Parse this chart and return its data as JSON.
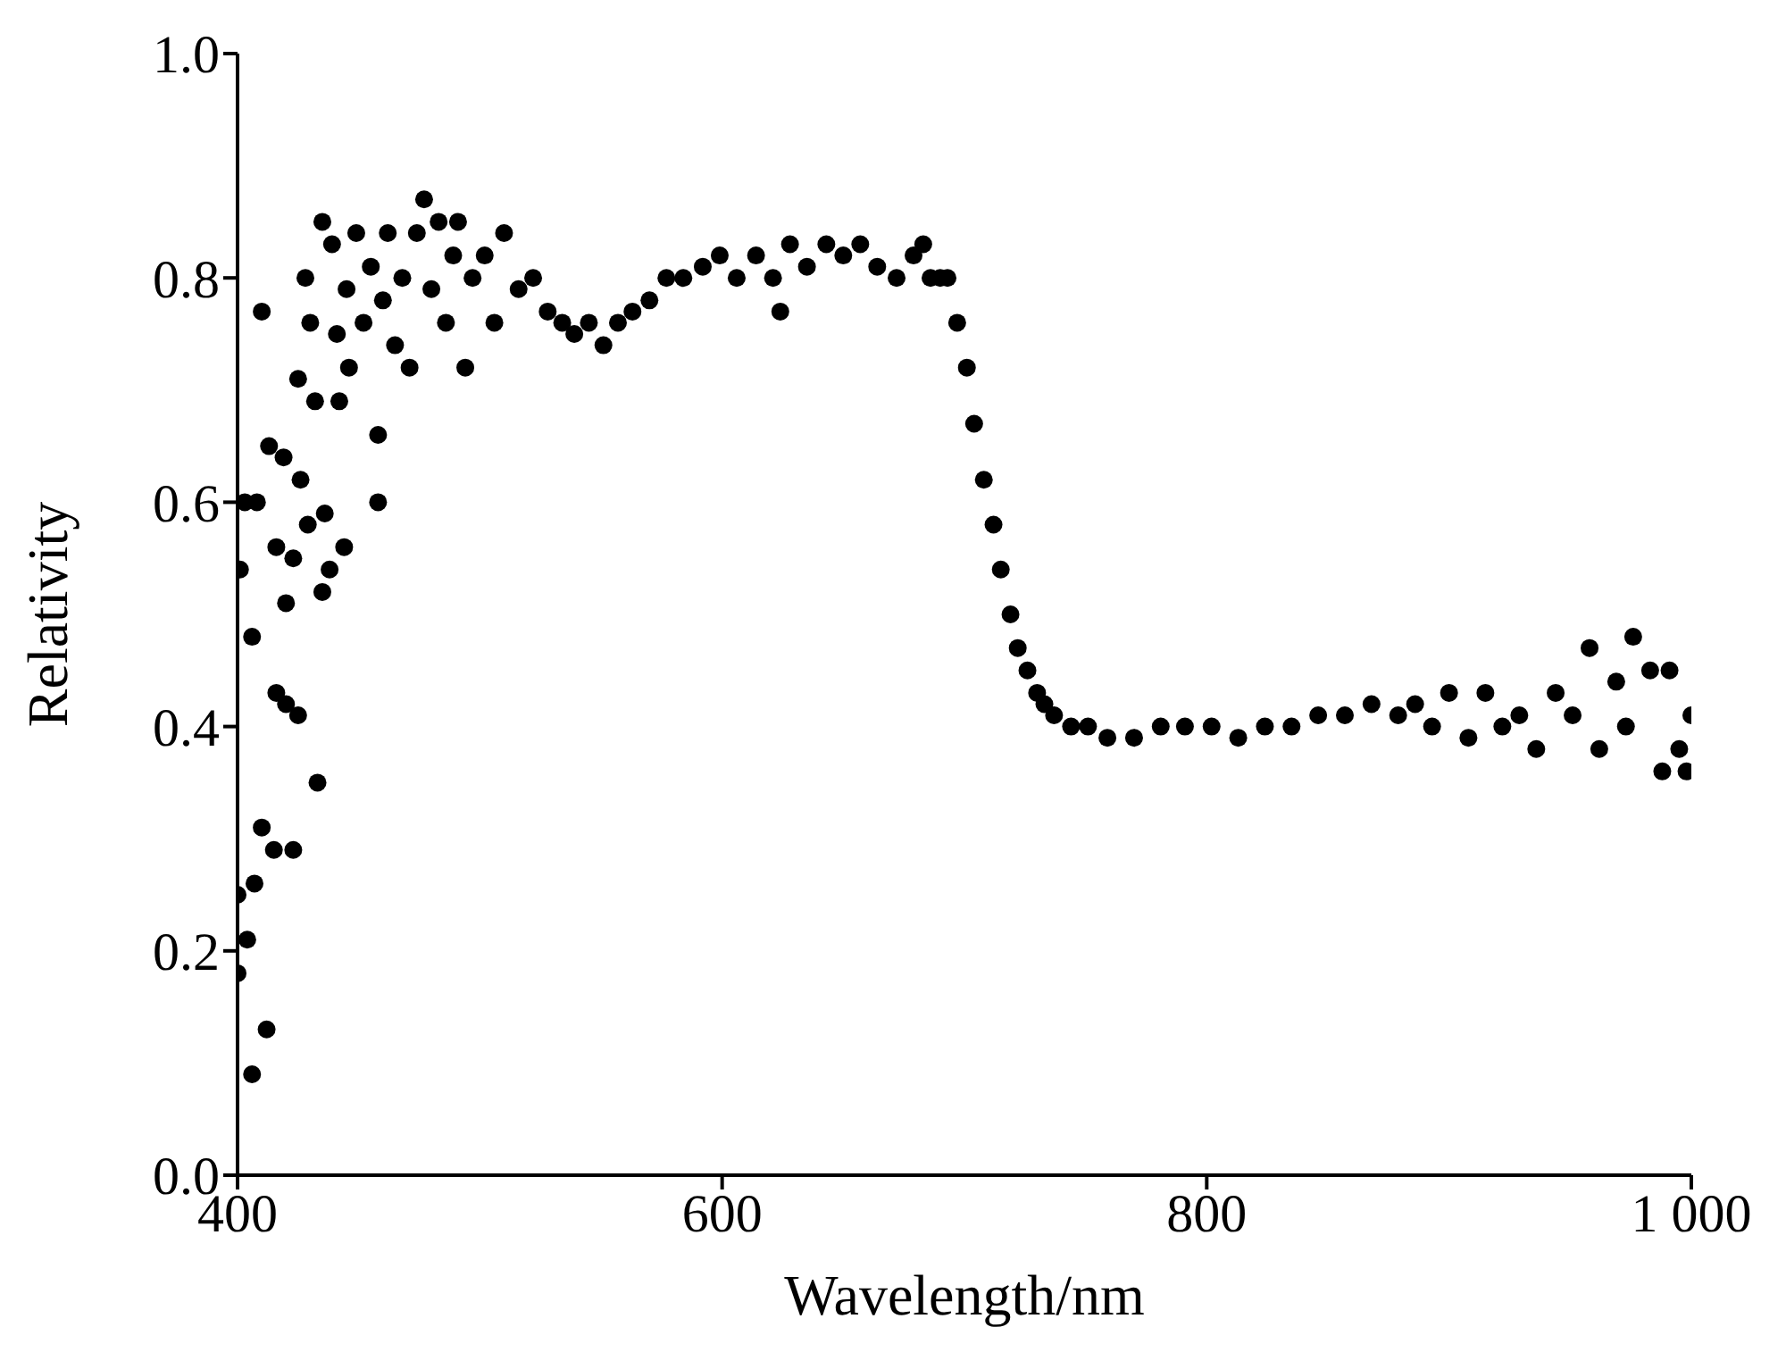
{
  "chart_data": {
    "type": "scatter",
    "xlabel": "Wavelength/nm",
    "ylabel": "Relativity",
    "marker": "circle",
    "grid": false,
    "legend": false,
    "xlim": [
      400,
      1000
    ],
    "xticks": [
      400,
      600,
      800,
      {
        "value": 1000,
        "label": "1 000"
      }
    ],
    "ylim": [
      0,
      1
    ],
    "yticks": [
      {
        "value": 0,
        "label": "0.0"
      },
      {
        "value": 0.2,
        "label": "0.2"
      },
      {
        "value": 0.4,
        "label": "0.4"
      },
      {
        "value": 0.6,
        "label": "0.6"
      },
      {
        "value": 0.8,
        "label": "0.8"
      },
      {
        "value": 1,
        "label": "1.0"
      }
    ],
    "series": [
      {
        "color": "#000000",
        "x": [
          400,
          400,
          401,
          403,
          404,
          406,
          406,
          407,
          408,
          410,
          412,
          410,
          413,
          415,
          416,
          416,
          419,
          420,
          420,
          423,
          423,
          425,
          425,
          426,
          428,
          429,
          430,
          432,
          433,
          435,
          435,
          436,
          438,
          439,
          441,
          442,
          444,
          445,
          446,
          449,
          452,
          455,
          458,
          458,
          460,
          462,
          465,
          468,
          471,
          474,
          477,
          480,
          483,
          486,
          489,
          491,
          494,
          497,
          502,
          506,
          510,
          516,
          522,
          528,
          534,
          539,
          545,
          551,
          557,
          563,
          570,
          577,
          584,
          592,
          599,
          606,
          614,
          621,
          624,
          628,
          635,
          643,
          650,
          657,
          664,
          672,
          679,
          683,
          686,
          690,
          693,
          697,
          701,
          704,
          708,
          712,
          715,
          719,
          722,
          726,
          730,
          733,
          737,
          744,
          751,
          759,
          770,
          781,
          791,
          802,
          813,
          824,
          835,
          846,
          857,
          868,
          879,
          886,
          893,
          900,
          908,
          915,
          922,
          929,
          936,
          944,
          951,
          958,
          962,
          969,
          973,
          976,
          983,
          988,
          991,
          995,
          998,
          1000
        ],
        "values": [
          0.25,
          0.18,
          0.54,
          0.6,
          0.21,
          0.48,
          0.09,
          0.26,
          0.6,
          0.31,
          0.13,
          0.77,
          0.65,
          0.29,
          0.56,
          0.43,
          0.64,
          0.42,
          0.51,
          0.55,
          0.29,
          0.41,
          0.71,
          0.62,
          0.8,
          0.58,
          0.76,
          0.69,
          0.35,
          0.85,
          0.52,
          0.59,
          0.54,
          0.83,
          0.75,
          0.69,
          0.56,
          0.79,
          0.72,
          0.84,
          0.76,
          0.81,
          0.66,
          0.6,
          0.78,
          0.84,
          0.74,
          0.8,
          0.72,
          0.84,
          0.87,
          0.79,
          0.85,
          0.76,
          0.82,
          0.85,
          0.72,
          0.8,
          0.82,
          0.76,
          0.84,
          0.79,
          0.8,
          0.77,
          0.76,
          0.75,
          0.76,
          0.74,
          0.76,
          0.77,
          0.78,
          0.8,
          0.8,
          0.81,
          0.82,
          0.8,
          0.82,
          0.8,
          0.77,
          0.83,
          0.81,
          0.83,
          0.82,
          0.83,
          0.81,
          0.8,
          0.82,
          0.83,
          0.8,
          0.8,
          0.8,
          0.76,
          0.72,
          0.67,
          0.62,
          0.58,
          0.54,
          0.5,
          0.47,
          0.45,
          0.43,
          0.42,
          0.41,
          0.4,
          0.4,
          0.39,
          0.39,
          0.4,
          0.4,
          0.4,
          0.39,
          0.4,
          0.4,
          0.41,
          0.41,
          0.42,
          0.41,
          0.42,
          0.4,
          0.43,
          0.39,
          0.43,
          0.4,
          0.41,
          0.38,
          0.43,
          0.41,
          0.47,
          0.38,
          0.44,
          0.4,
          0.48,
          0.45,
          0.36,
          0.45,
          0.38,
          0.36,
          0.41
        ]
      }
    ]
  }
}
